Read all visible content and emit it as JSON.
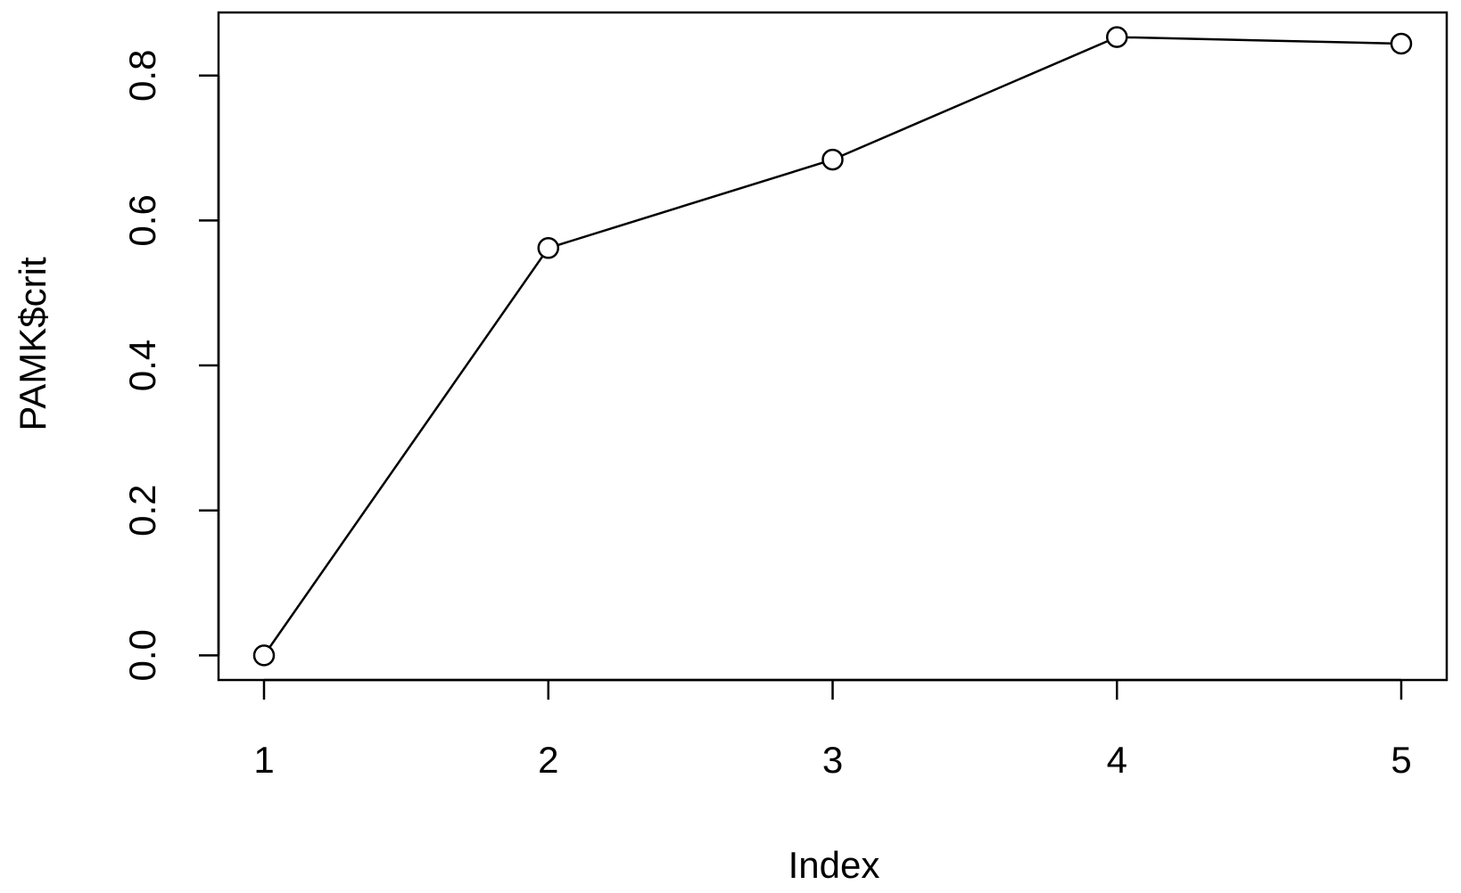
{
  "chart_data": {
    "type": "line",
    "x_label": "Index",
    "y_label": "PAMK$crit",
    "x": [
      1,
      2,
      3,
      4,
      5
    ],
    "values": [
      0,
      0.562,
      0.684,
      0.853,
      0.844
    ],
    "color": "#000000",
    "xlim": [
      0.84,
      5.16
    ],
    "xticks": [
      1,
      2,
      3,
      4,
      5
    ],
    "ylim": [
      -0.034,
      0.887
    ],
    "yticks": [
      {
        "value": 0,
        "label": "0.0"
      },
      {
        "value": 0.2,
        "label": "0.2"
      },
      {
        "value": 0.4,
        "label": "0.4"
      },
      {
        "value": 0.6,
        "label": "0.6"
      },
      {
        "value": 0.8,
        "label": "0.8"
      }
    ],
    "grid": false
  }
}
